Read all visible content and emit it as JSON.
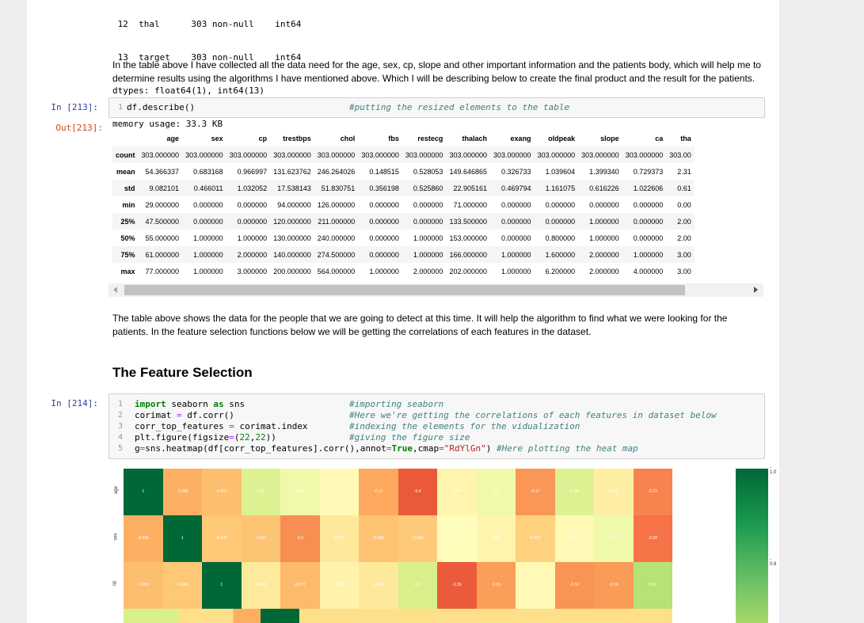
{
  "info_output": {
    "lines": [
      " 12  thal      303 non-null    int64",
      " 13  target    303 non-null    int64",
      "dtypes: float64(1), int64(13)",
      "memory usage: 33.3 KB"
    ]
  },
  "paragraph1": "In the table above I have collected all the data need for the age, sex, cp, slope and other important information and the patients body, which will help me to determine results using the algorithms I have mentioned above. Which I will be describing below to create the final product and the result for the patients.",
  "cell213": {
    "in_prompt": "In [213]:",
    "out_prompt": "Out[213]:",
    "code_line_no": "1",
    "code": "df.describe()",
    "comment": "#putting the resized elements to the table"
  },
  "describe_table": {
    "columns": [
      "age",
      "sex",
      "cp",
      "trestbps",
      "chol",
      "fbs",
      "restecg",
      "thalach",
      "exang",
      "oldpeak",
      "slope",
      "ca",
      "tha"
    ],
    "rows": [
      {
        "label": "count",
        "values": [
          "303.000000",
          "303.000000",
          "303.000000",
          "303.000000",
          "303.000000",
          "303.000000",
          "303.000000",
          "303.000000",
          "303.000000",
          "303.000000",
          "303.000000",
          "303.000000",
          "303.00"
        ]
      },
      {
        "label": "mean",
        "values": [
          "54.366337",
          "0.683168",
          "0.966997",
          "131.623762",
          "246.264026",
          "0.148515",
          "0.528053",
          "149.646865",
          "0.326733",
          "1.039604",
          "1.399340",
          "0.729373",
          "2.31"
        ]
      },
      {
        "label": "std",
        "values": [
          "9.082101",
          "0.466011",
          "1.032052",
          "17.538143",
          "51.830751",
          "0.356198",
          "0.525860",
          "22.905161",
          "0.469794",
          "1.161075",
          "0.616226",
          "1.022606",
          "0.61"
        ]
      },
      {
        "label": "min",
        "values": [
          "29.000000",
          "0.000000",
          "0.000000",
          "94.000000",
          "126.000000",
          "0.000000",
          "0.000000",
          "71.000000",
          "0.000000",
          "0.000000",
          "0.000000",
          "0.000000",
          "0.00"
        ]
      },
      {
        "label": "25%",
        "values": [
          "47.500000",
          "0.000000",
          "0.000000",
          "120.000000",
          "211.000000",
          "0.000000",
          "0.000000",
          "133.500000",
          "0.000000",
          "0.000000",
          "1.000000",
          "0.000000",
          "2.00"
        ]
      },
      {
        "label": "50%",
        "values": [
          "55.000000",
          "1.000000",
          "1.000000",
          "130.000000",
          "240.000000",
          "0.000000",
          "1.000000",
          "153.000000",
          "0.000000",
          "0.800000",
          "1.000000",
          "0.000000",
          "2.00"
        ]
      },
      {
        "label": "75%",
        "values": [
          "61.000000",
          "1.000000",
          "2.000000",
          "140.000000",
          "274.500000",
          "0.000000",
          "1.000000",
          "166.000000",
          "1.000000",
          "1.600000",
          "2.000000",
          "1.000000",
          "3.00"
        ]
      },
      {
        "label": "max",
        "values": [
          "77.000000",
          "1.000000",
          "3.000000",
          "200.000000",
          "564.000000",
          "1.000000",
          "2.000000",
          "202.000000",
          "1.000000",
          "6.200000",
          "2.000000",
          "4.000000",
          "3.00"
        ]
      }
    ]
  },
  "paragraph2": "The table above shows the data for the people that we are going to detect at this time. It will help the algorithm to find what we were looking for the patients. In the feature selection functions below we will be getting the correlations of each features in the dataset.",
  "heading": "The Feature Selection",
  "cell214": {
    "in_prompt": "In [214]:",
    "lines": [
      {
        "no": "1",
        "comment": "#importing seaborn"
      },
      {
        "no": "2",
        "comment": "#Here we're getting the correlations of each features in dataset below"
      },
      {
        "no": "3",
        "comment": "#indexing the elements for the vidualization"
      },
      {
        "no": "4",
        "comment": "#giving the figure size"
      },
      {
        "no": "5",
        "comment": "#Here plotting the heat map"
      }
    ]
  },
  "heatmap": {
    "row_labels": [
      "age",
      "sex",
      "cp"
    ],
    "rows": [
      [
        "1",
        "-0.098",
        "-0.069",
        "0.28",
        "0.21",
        "0.12",
        "-0.12",
        "-0.4",
        "0.097",
        "0.21",
        "-0.17",
        "0.28",
        "0.068",
        "-0.23"
      ],
      [
        "-0.098",
        "1",
        "-0.049",
        "-0.057",
        "-0.2",
        "0.045",
        "-0.058",
        "-0.044",
        "0.14",
        "0.096",
        "-0.031",
        "0.12",
        "0.21",
        "-0.28"
      ],
      [
        "-0.069",
        "-0.049",
        "1",
        "0.048",
        "-0.077",
        "0.094",
        "0.044",
        "0.3",
        "-0.39",
        "-0.15",
        "0.12",
        "-0.18",
        "-0.16",
        "0.43"
      ]
    ],
    "colorbar_ticks": [
      "1.0",
      "0.8"
    ]
  },
  "colors": {
    "in_prompt": "#303f9f",
    "out_prompt": "#d84315"
  }
}
